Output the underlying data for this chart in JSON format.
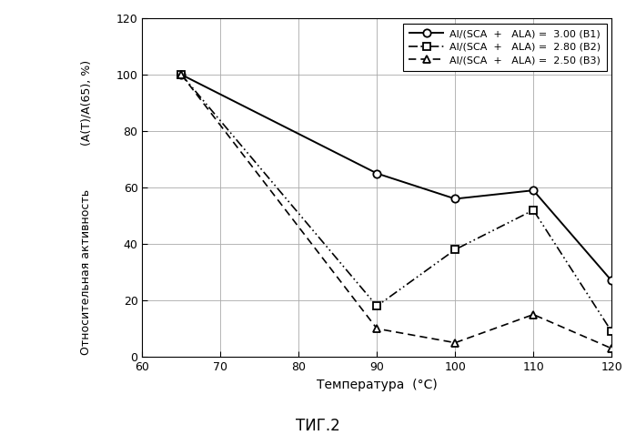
{
  "title": "ΤИГ.2",
  "xlabel": "Температура  (°C)",
  "ylabel_top": "(A(T)/A(65), %)",
  "ylabel_bottom": "Относительная активность",
  "xlim": [
    60,
    120
  ],
  "ylim": [
    0,
    120
  ],
  "xticks": [
    60,
    70,
    80,
    90,
    100,
    110,
    120
  ],
  "yticks": [
    0,
    20,
    40,
    60,
    80,
    100,
    120
  ],
  "series": [
    {
      "label": "Al/(SCA  +   ALA) =  3.00 (B1)",
      "x": [
        65,
        90,
        100,
        110,
        120
      ],
      "y": [
        100,
        65,
        56,
        59,
        27
      ],
      "color": "#000000",
      "linestyle": "-",
      "marker": "o",
      "markersize": 6,
      "linewidth": 1.4
    },
    {
      "label": "Al/(SCA  +   ALA) =  2.80 (B2)",
      "x": [
        65,
        90,
        100,
        110,
        120
      ],
      "y": [
        100,
        18,
        38,
        52,
        9
      ],
      "color": "#000000",
      "linestyle": "dotted_dash",
      "marker": "s",
      "markersize": 6,
      "linewidth": 1.2
    },
    {
      "label": "Al/(SCA  +   ALA) =  2.50 (B3)",
      "x": [
        65,
        90,
        100,
        110,
        120
      ],
      "y": [
        100,
        10,
        5,
        15,
        3
      ],
      "color": "#000000",
      "linestyle": "dashed",
      "marker": "^",
      "markersize": 6,
      "linewidth": 1.2
    }
  ],
  "background_color": "#ffffff",
  "grid_color": "#aaaaaa"
}
